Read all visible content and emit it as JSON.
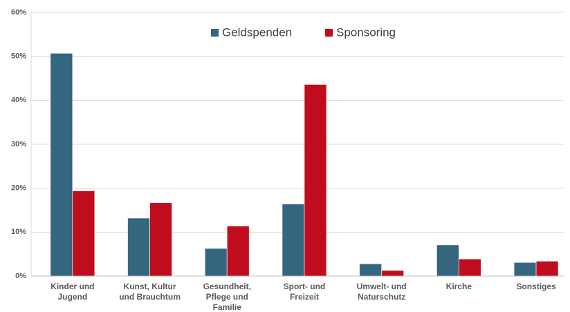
{
  "chart_data": {
    "type": "bar",
    "categories": [
      [
        "Kinder und",
        "Jugend"
      ],
      [
        "Kunst, Kultur",
        "und Brauchtum"
      ],
      [
        "Gesundheit,",
        "Pflege und",
        "Familie"
      ],
      [
        "Sport- und",
        "Freizeit"
      ],
      [
        "Umwelt- und",
        "Naturschutz"
      ],
      [
        "Kirche"
      ],
      [
        "Sonstiges"
      ]
    ],
    "series": [
      {
        "name": "Geldspenden",
        "color": "#35667f",
        "values": [
          50.7,
          13.2,
          6.3,
          16.4,
          2.8,
          7.1,
          3.1
        ]
      },
      {
        "name": "Sponsoring",
        "color": "#c00d1e",
        "values": [
          19.4,
          16.7,
          11.4,
          43.6,
          1.3,
          3.9,
          3.4
        ]
      }
    ],
    "ylim": [
      0,
      60
    ],
    "yticks": [
      {
        "value": 0,
        "label": "0%"
      },
      {
        "value": 10,
        "label": "10%"
      },
      {
        "value": 20,
        "label": "20%"
      },
      {
        "value": 30,
        "label": "30%"
      },
      {
        "value": 40,
        "label": "40%"
      },
      {
        "value": 50,
        "label": "50%"
      },
      {
        "value": 60,
        "label": "60%"
      }
    ],
    "grid": true,
    "legend": "top"
  }
}
